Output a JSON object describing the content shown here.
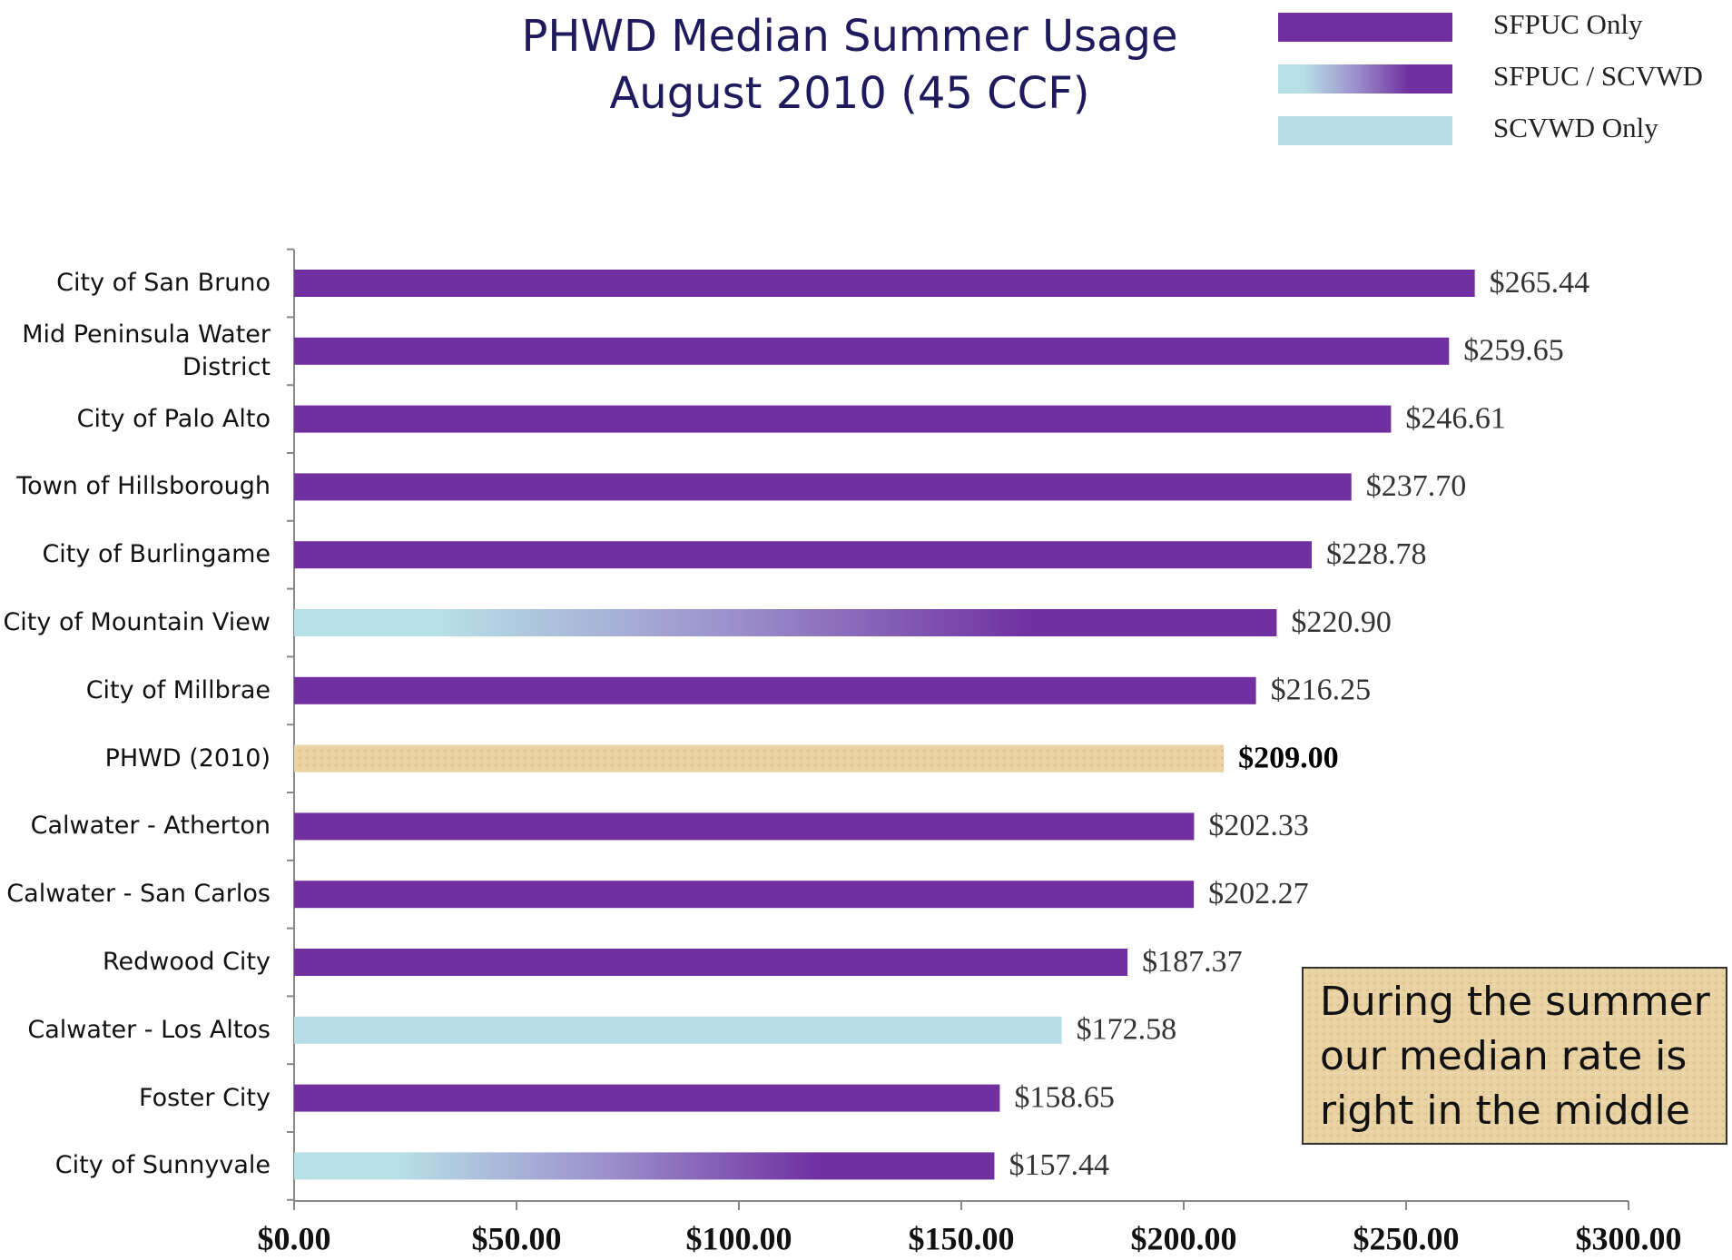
{
  "chart_data": {
    "type": "hbar",
    "title": [
      "PHWD Median Summer Usage",
      "August 2010 (45 CCF)"
    ],
    "legend": [
      {
        "name": "SFPUC Only",
        "color": "#7030a0"
      },
      {
        "name": "SFPUC / SCVWD",
        "color": [
          "#b7dfe6",
          "#7030a0"
        ]
      },
      {
        "name": "SCVWD Only",
        "color": "#b7dde8"
      }
    ],
    "categories": [
      "City of San Bruno",
      "Mid Peninsula Water District",
      "City of Palo Alto",
      "Town of Hillsborough",
      "City of Burlingame",
      "City of Mountain View",
      "City of Millbrae",
      "PHWD (2010)",
      "Calwater - Atherton",
      "Calwater - San Carlos",
      "Redwood City",
      "Calwater - Los Altos",
      "Foster City",
      "City of Sunnyvale"
    ],
    "values": [
      265.44,
      259.65,
      246.61,
      237.7,
      228.78,
      220.9,
      216.25,
      209.0,
      202.33,
      202.27,
      187.37,
      172.58,
      158.65,
      157.44
    ],
    "value_labels": [
      "$265.44",
      "$259.65",
      "$246.61",
      "$237.70",
      "$228.78",
      "$220.90",
      "$216.25",
      "$209.00",
      "$202.33",
      "$202.27",
      "$187.37",
      "$172.58",
      "$158.65",
      "$157.44"
    ],
    "colors": [
      "#7030a0",
      "#7030a0",
      "#7030a0",
      "#7030a0",
      "#7030a0",
      [
        "#b7dfe6",
        "#7030a0"
      ],
      "#7030a0",
      "#e9d3a4",
      "#7030a0",
      "#7030a0",
      "#7030a0",
      "#b7dde8",
      "#7030a0",
      [
        "#b7dfe6",
        "#7030a0"
      ]
    ],
    "xlim": [
      0,
      300
    ],
    "xticks": [
      {
        "value": 0,
        "label": "$0.00"
      },
      {
        "value": 50,
        "label": "$50.00"
      },
      {
        "value": 100,
        "label": "$100.00"
      },
      {
        "value": 150,
        "label": "$150.00"
      },
      {
        "value": 200,
        "label": "$200.00"
      },
      {
        "value": 250,
        "label": "$250.00"
      },
      {
        "value": 300,
        "label": "$300.00"
      }
    ],
    "annotation": [
      "During the summer",
      "our median rate is",
      "right in the middle"
    ]
  }
}
